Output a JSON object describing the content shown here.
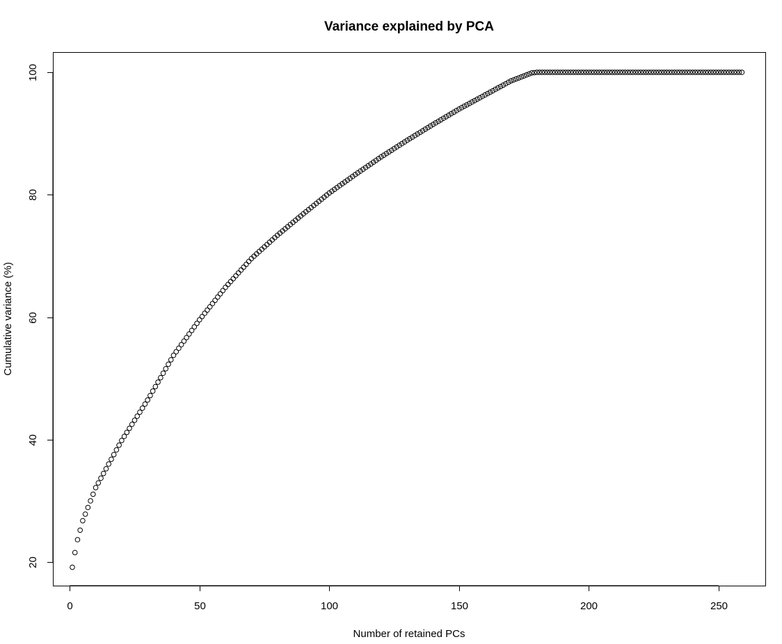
{
  "chart_data": {
    "type": "scatter",
    "title": "Variance explained by PCA",
    "xlabel": "Number of retained PCs",
    "ylabel": "Cumulative variance (%)",
    "xlim": [
      -6.5,
      268
    ],
    "ylim": [
      16.2,
      103.3
    ],
    "xticks": [
      0,
      50,
      100,
      150,
      200,
      250
    ],
    "yticks": [
      20,
      40,
      60,
      80,
      100
    ],
    "grid": false,
    "legend": "none",
    "n_points": 259,
    "series": [
      {
        "x_start": 1,
        "x_step": 1,
        "values_note_omitted": true,
        "anchors_x": [
          1,
          2,
          3,
          5,
          10,
          20,
          30,
          40,
          50,
          60,
          70,
          80,
          90,
          100,
          110,
          120,
          130,
          140,
          150,
          160,
          170,
          178,
          180,
          259
        ],
        "anchors_y": [
          19.2,
          21.6,
          23.7,
          26.8,
          32.2,
          39.9,
          46.5,
          53.8,
          59.6,
          64.9,
          69.6,
          73.4,
          76.9,
          80.3,
          83.3,
          86.2,
          88.9,
          91.5,
          94.0,
          96.3,
          98.6,
          99.9,
          100.0,
          100.0
        ]
      }
    ],
    "marker_color": "#000000"
  }
}
